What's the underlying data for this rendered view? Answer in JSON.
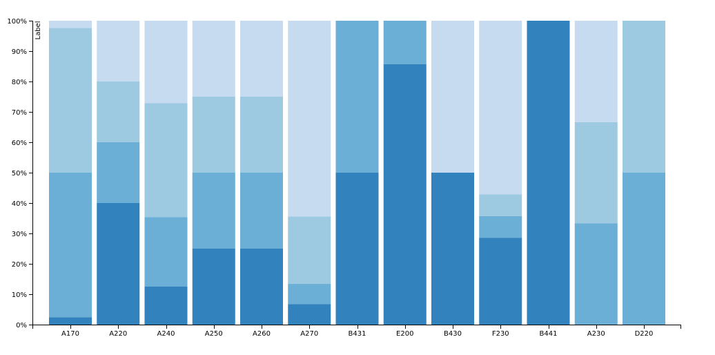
{
  "chart_data": {
    "type": "bar",
    "stacked": true,
    "normalized": true,
    "ylabel": "Label",
    "ylim": [
      0,
      100
    ],
    "y_ticks": [
      "0%",
      "10%",
      "20%",
      "30%",
      "40%",
      "50%",
      "60%",
      "70%",
      "80%",
      "90%",
      "100%"
    ],
    "categories": [
      "A170",
      "A220",
      "A240",
      "A250",
      "A260",
      "A270",
      "B431",
      "E200",
      "B430",
      "F230",
      "B441",
      "A230",
      "D220"
    ],
    "series": [
      {
        "color": "#3182bd",
        "values": [
          2.4,
          40,
          12.5,
          25,
          25,
          6.7,
          50,
          85.7,
          50,
          28.6,
          100,
          0,
          0
        ]
      },
      {
        "color": "#6baed6",
        "values": [
          47.6,
          20,
          22.9,
          25,
          25,
          6.7,
          50,
          14.3,
          0,
          7.1,
          0,
          33.3,
          50
        ]
      },
      {
        "color": "#9ecae1",
        "values": [
          47.6,
          20,
          37.5,
          25,
          25,
          22.2,
          0,
          0,
          0,
          7.2,
          0,
          33.3,
          50
        ]
      },
      {
        "color": "#c6dbef",
        "values": [
          2.4,
          20,
          27.1,
          25,
          25,
          64.4,
          0,
          0,
          50,
          57.1,
          0,
          33.4,
          0
        ]
      }
    ],
    "grid": false,
    "legend": "none"
  }
}
